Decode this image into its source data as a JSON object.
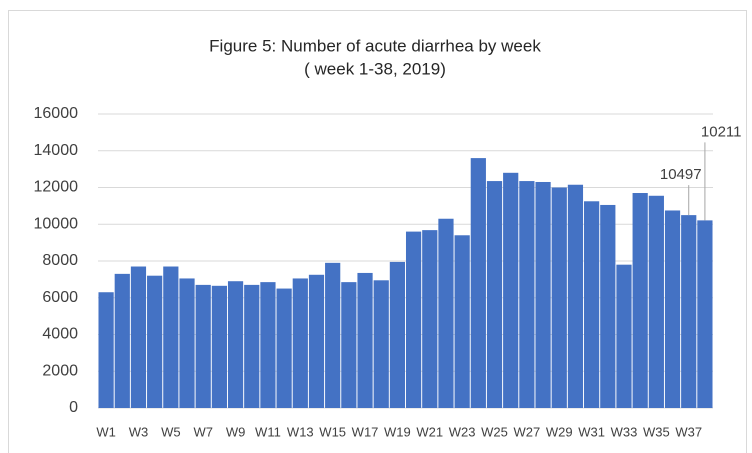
{
  "chart_data": {
    "type": "bar",
    "title": "Figure 5: Number of acute diarrhea by week",
    "subtitle": "( week 1-38, 2019)",
    "categories": [
      "W1",
      null,
      "W3",
      null,
      "W5",
      null,
      "W7",
      null,
      "W9",
      null,
      "W11",
      null,
      "W13",
      null,
      "W15",
      null,
      "W17",
      null,
      "W19",
      null,
      "W21",
      null,
      "W23",
      null,
      "W25",
      null,
      "W27",
      null,
      "W29",
      null,
      "W31",
      null,
      "W33",
      null,
      "W35",
      null,
      "W37",
      null
    ],
    "values": [
      6300,
      7300,
      7700,
      7200,
      7700,
      7050,
      6700,
      6650,
      6900,
      6700,
      6850,
      6500,
      7050,
      7250,
      7900,
      6850,
      7350,
      6950,
      7950,
      9600,
      9680,
      10300,
      9400,
      13600,
      12350,
      12800,
      12350,
      12300,
      12000,
      12150,
      11250,
      11050,
      7800,
      11700,
      11550,
      10750,
      10497,
      10211
    ],
    "value_labels": [
      null,
      null,
      null,
      null,
      null,
      null,
      null,
      null,
      null,
      null,
      null,
      null,
      null,
      null,
      null,
      null,
      null,
      null,
      null,
      null,
      null,
      null,
      null,
      null,
      null,
      null,
      null,
      null,
      null,
      null,
      null,
      null,
      null,
      null,
      null,
      null,
      "10497",
      "10211"
    ],
    "color": "#4472c4",
    "ylim": [
      0,
      16000
    ],
    "yticks": [
      0,
      2000,
      4000,
      6000,
      8000,
      10000,
      12000,
      14000,
      16000
    ],
    "grid": true
  }
}
